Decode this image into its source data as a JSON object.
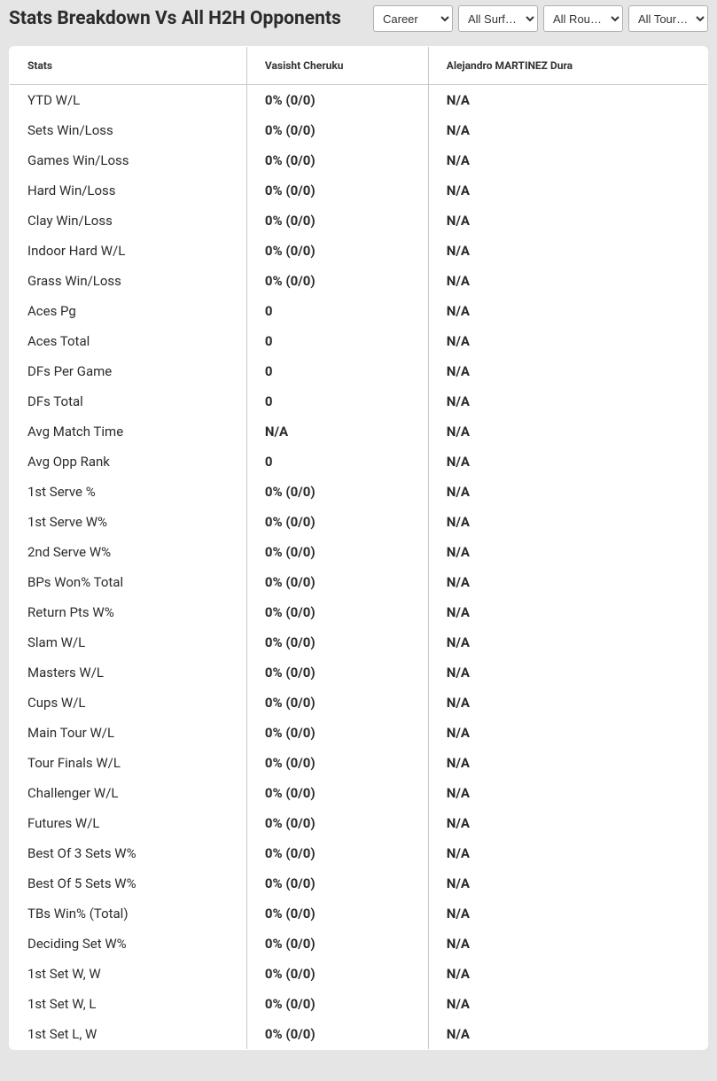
{
  "header": {
    "title": "Stats Breakdown Vs All H2H Opponents"
  },
  "filters": {
    "period": {
      "selected": "Career",
      "options": [
        "Career"
      ]
    },
    "surface": {
      "selected": "All Surf…",
      "options": [
        "All Surf…"
      ]
    },
    "rounds": {
      "selected": "All Rou…",
      "options": [
        "All Rou…"
      ]
    },
    "tours": {
      "selected": "All Tour…",
      "options": [
        "All Tour…"
      ]
    }
  },
  "table": {
    "columns": [
      "Stats",
      "Vasisht Cheruku",
      "Alejandro MARTINEZ Dura"
    ],
    "rows": [
      [
        "YTD W/L",
        "0% (0/0)",
        "N/A"
      ],
      [
        "Sets Win/Loss",
        "0% (0/0)",
        "N/A"
      ],
      [
        "Games Win/Loss",
        "0% (0/0)",
        "N/A"
      ],
      [
        "Hard Win/Loss",
        "0% (0/0)",
        "N/A"
      ],
      [
        "Clay Win/Loss",
        "0% (0/0)",
        "N/A"
      ],
      [
        "Indoor Hard W/L",
        "0% (0/0)",
        "N/A"
      ],
      [
        "Grass Win/Loss",
        "0% (0/0)",
        "N/A"
      ],
      [
        "Aces Pg",
        "0",
        "N/A"
      ],
      [
        "Aces Total",
        "0",
        "N/A"
      ],
      [
        "DFs Per Game",
        "0",
        "N/A"
      ],
      [
        "DFs Total",
        "0",
        "N/A"
      ],
      [
        "Avg Match Time",
        "N/A",
        "N/A"
      ],
      [
        "Avg Opp Rank",
        "0",
        "N/A"
      ],
      [
        "1st Serve %",
        "0% (0/0)",
        "N/A"
      ],
      [
        "1st Serve W%",
        "0% (0/0)",
        "N/A"
      ],
      [
        "2nd Serve W%",
        "0% (0/0)",
        "N/A"
      ],
      [
        "BPs Won% Total",
        "0% (0/0)",
        "N/A"
      ],
      [
        "Return Pts W%",
        "0% (0/0)",
        "N/A"
      ],
      [
        "Slam W/L",
        "0% (0/0)",
        "N/A"
      ],
      [
        "Masters W/L",
        "0% (0/0)",
        "N/A"
      ],
      [
        "Cups W/L",
        "0% (0/0)",
        "N/A"
      ],
      [
        "Main Tour W/L",
        "0% (0/0)",
        "N/A"
      ],
      [
        "Tour Finals W/L",
        "0% (0/0)",
        "N/A"
      ],
      [
        "Challenger W/L",
        "0% (0/0)",
        "N/A"
      ],
      [
        "Futures W/L",
        "0% (0/0)",
        "N/A"
      ],
      [
        "Best Of 3 Sets W%",
        "0% (0/0)",
        "N/A"
      ],
      [
        "Best Of 5 Sets W%",
        "0% (0/0)",
        "N/A"
      ],
      [
        "TBs Win% (Total)",
        "0% (0/0)",
        "N/A"
      ],
      [
        "Deciding Set W%",
        "0% (0/0)",
        "N/A"
      ],
      [
        "1st Set W, W",
        "0% (0/0)",
        "N/A"
      ],
      [
        "1st Set W, L",
        "0% (0/0)",
        "N/A"
      ],
      [
        "1st Set L, W",
        "0% (0/0)",
        "N/A"
      ]
    ]
  },
  "styling": {
    "background_color": "#e5e5e5",
    "table_background": "#ffffff",
    "border_color": "#c8c8c8",
    "text_color": "#2b2b2b",
    "title_fontsize": 21,
    "header_fontsize": 12,
    "cell_fontsize": 15
  }
}
